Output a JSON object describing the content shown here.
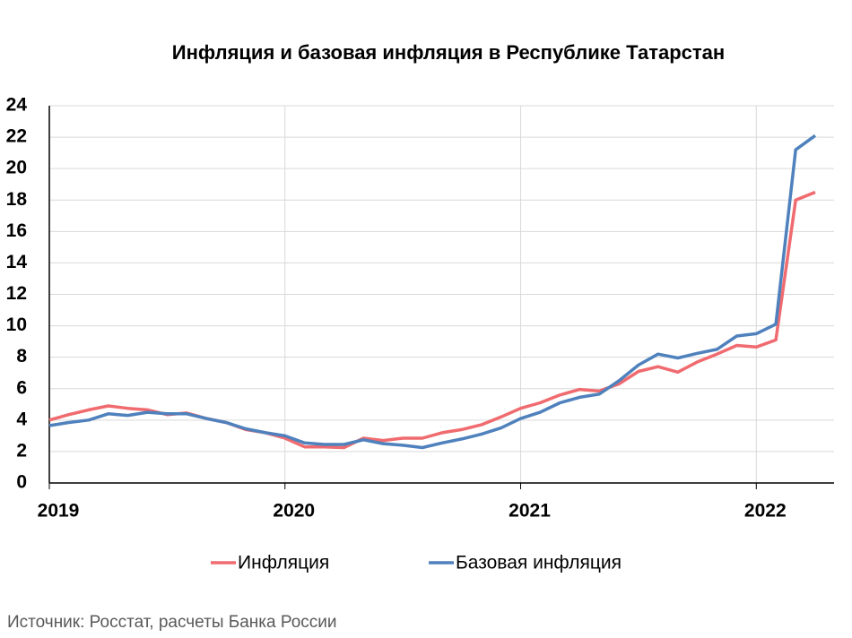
{
  "chart_data": {
    "type": "line",
    "title": "Инфляция и базовая инфляция в Республике Татарстан",
    "source": "Источник: Росстат, расчеты Банка России",
    "x": [
      2019,
      2019.083,
      2019.167,
      2019.25,
      2019.333,
      2019.417,
      2019.5,
      2019.583,
      2019.667,
      2019.75,
      2019.833,
      2019.917,
      2020,
      2020.083,
      2020.167,
      2020.25,
      2020.333,
      2020.417,
      2020.5,
      2020.583,
      2020.667,
      2020.75,
      2020.833,
      2020.917,
      2021,
      2021.083,
      2021.167,
      2021.25,
      2021.333,
      2021.417,
      2021.5,
      2021.583,
      2021.667,
      2021.75,
      2021.833,
      2021.917,
      2022,
      2022.083,
      2022.167,
      2022.25
    ],
    "series": [
      {
        "name": "Инфляция",
        "color": "#f06b6f",
        "values": [
          4.0,
          4.35,
          4.65,
          4.9,
          4.75,
          4.65,
          4.35,
          4.45,
          4.1,
          3.85,
          3.4,
          3.2,
          2.85,
          2.3,
          2.3,
          2.25,
          2.85,
          2.7,
          2.85,
          2.85,
          3.2,
          3.4,
          3.7,
          4.2,
          4.75,
          5.1,
          5.6,
          5.95,
          5.85,
          6.3,
          7.1,
          7.4,
          7.05,
          7.7,
          8.2,
          8.75,
          8.65,
          9.1,
          18.0,
          18.5
        ]
      },
      {
        "name": "Базовая инфляция",
        "color": "#4f81bd",
        "values": [
          3.65,
          3.85,
          4.0,
          4.4,
          4.3,
          4.5,
          4.4,
          4.4,
          4.1,
          3.85,
          3.45,
          3.2,
          3.0,
          2.55,
          2.45,
          2.45,
          2.75,
          2.5,
          2.4,
          2.25,
          2.55,
          2.8,
          3.1,
          3.5,
          4.1,
          4.5,
          5.1,
          5.45,
          5.65,
          6.5,
          7.5,
          8.2,
          7.95,
          8.25,
          8.5,
          9.35,
          9.5,
          10.1,
          21.2,
          22.1
        ]
      }
    ],
    "xlim": [
      2019,
      2022.33
    ],
    "xticks": [
      2019,
      2020,
      2021,
      2022
    ],
    "ylim": [
      0,
      24
    ],
    "yticks": [
      0,
      2,
      4,
      6,
      8,
      10,
      12,
      14,
      16,
      18,
      20,
      22,
      24
    ],
    "grid": true,
    "legend": "bottom"
  }
}
